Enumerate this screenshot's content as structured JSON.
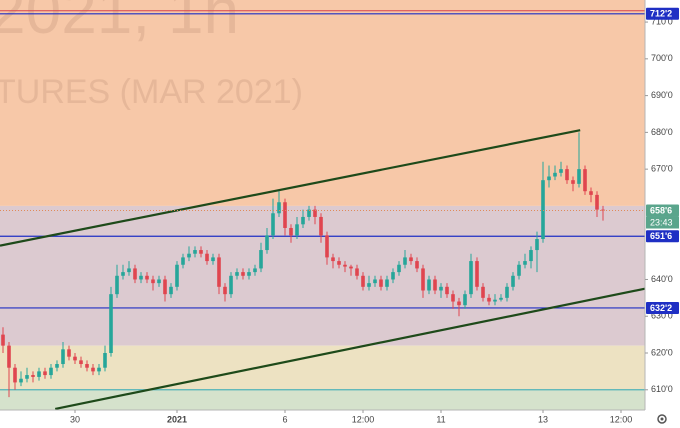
{
  "chart_data": {
    "type": "candlestick",
    "watermark": {
      "title": "2021, 1h",
      "subtitle": "TURES (MAR 2021)"
    },
    "xlim": [
      -0.5,
      107
    ],
    "ylim": [
      604.5,
      716
    ],
    "xticks": [
      {
        "value": 12,
        "label": "30"
      },
      {
        "value": 29,
        "label": "2021"
      },
      {
        "value": 47,
        "label": "6"
      },
      {
        "value": 60,
        "label": "12:00"
      },
      {
        "value": 73,
        "label": "11"
      },
      {
        "value": 90,
        "label": "13"
      },
      {
        "value": 103,
        "label": "12:00"
      }
    ],
    "yticks": [
      {
        "value": 610,
        "label": "610'0"
      },
      {
        "value": 620,
        "label": "620'0"
      },
      {
        "value": 630,
        "label": "630'0"
      },
      {
        "value": 640,
        "label": "640'0"
      },
      {
        "value": 670,
        "label": "670'0"
      },
      {
        "value": 680,
        "label": "680'0"
      },
      {
        "value": 690,
        "label": "690'0"
      },
      {
        "value": 700,
        "label": "700'0"
      },
      {
        "value": 710,
        "label": "710'0"
      }
    ],
    "up_color": "#26a69a",
    "down_color": "#e0454f",
    "zones": [
      {
        "from": 660,
        "to": 716,
        "color": "#f7c8a8"
      },
      {
        "from": 622,
        "to": 660,
        "color": "#dccad0"
      },
      {
        "from": 610,
        "to": 622,
        "color": "#ede2c2"
      },
      {
        "from": 604.5,
        "to": 610,
        "color": "#d5e2cc"
      }
    ],
    "levels": [
      {
        "value": 712.25,
        "label": "712'2",
        "color": "#1f2fc4"
      },
      {
        "value": 651.75,
        "label": "651'6",
        "color": "#1f2fc4"
      },
      {
        "value": 632.25,
        "label": "632'2",
        "color": "#1f2fc4"
      },
      {
        "value": 610,
        "color": "#4fb3b8"
      }
    ],
    "last_price": {
      "value": 658.75,
      "label": "658'6",
      "color": "#5aa58c"
    },
    "countdown": "23:43",
    "trendlines": [
      {
        "x": [
          -0.5,
          96.2
        ],
        "y": [
          649.2,
          680.6
        ],
        "color": "#1e4a1a"
      },
      {
        "x": [
          8.7,
          107
        ],
        "y": [
          604.8,
          637.5
        ],
        "color": "#1e4a1a"
      }
    ],
    "ohlc": {
      "open": [
        625,
        622,
        616,
        612,
        613,
        614,
        613.5,
        615,
        614,
        616,
        617,
        621,
        619,
        618,
        617,
        616,
        615,
        616,
        620,
        636,
        641,
        642,
        643,
        640,
        641,
        640,
        639,
        640,
        636,
        638,
        644,
        646,
        647,
        648,
        647,
        645,
        646,
        638,
        636,
        641,
        642,
        641,
        642,
        643,
        648,
        652,
        658,
        661,
        654,
        652,
        655,
        657,
        659,
        657,
        652,
        646,
        645,
        644,
        643.5,
        643,
        641,
        638,
        639,
        640,
        638,
        640,
        642,
        644,
        646,
        645,
        643,
        637,
        640,
        637,
        638,
        636,
        634,
        633,
        636,
        645,
        638,
        635,
        634,
        634.5,
        635,
        638,
        641,
        644,
        645,
        648,
        651,
        667,
        668,
        669,
        670,
        667,
        666,
        670,
        664,
        663,
        659
      ],
      "high": [
        627,
        623,
        617,
        615,
        616,
        615,
        616,
        616,
        617,
        618,
        623,
        622,
        620,
        619,
        618,
        617,
        617,
        622,
        638,
        644,
        644,
        645,
        644,
        642,
        642,
        641,
        641,
        641,
        639,
        645,
        647,
        649,
        649,
        649,
        648,
        647,
        647,
        639,
        642,
        643,
        643,
        643,
        644,
        650,
        654,
        662,
        664,
        662,
        655,
        657,
        659,
        660,
        660,
        658,
        653,
        647,
        646,
        645,
        644,
        644,
        642,
        641,
        641,
        641,
        641,
        643,
        645,
        648,
        647,
        646,
        644,
        641,
        641,
        639,
        639,
        637,
        635,
        637,
        647,
        646,
        639,
        636,
        636,
        636,
        639,
        642,
        645,
        647,
        649,
        653,
        672,
        671,
        671,
        672,
        671,
        668,
        680,
        671,
        665,
        664,
        660
      ],
      "low": [
        620,
        608,
        610,
        611,
        612,
        612,
        612.5,
        613,
        613,
        615,
        616,
        618,
        617,
        616,
        615,
        614,
        614,
        615,
        619,
        635,
        640,
        641,
        639,
        639,
        639,
        637,
        638,
        634,
        635,
        637,
        643,
        645,
        646,
        646,
        644,
        644,
        636,
        634,
        635,
        640,
        640,
        640,
        641,
        642,
        647,
        651,
        657,
        652,
        650,
        651,
        654,
        656,
        655,
        650,
        644,
        643,
        643,
        642,
        641,
        640,
        637,
        637,
        638,
        637,
        637,
        639,
        641,
        643,
        644,
        642,
        635,
        636,
        636,
        635,
        635,
        632,
        630,
        632,
        635,
        637,
        634,
        633,
        633,
        634,
        634,
        637,
        640,
        643,
        643,
        642,
        650,
        665,
        667,
        668,
        666,
        664,
        665,
        663,
        661,
        657,
        656
      ],
      "close": [
        622,
        616,
        612,
        613,
        614,
        613.5,
        615,
        614,
        616,
        617,
        621,
        619,
        618,
        617,
        616,
        615,
        616,
        620,
        636,
        641,
        642,
        643,
        640,
        641,
        640,
        639,
        640,
        636,
        638,
        644,
        646,
        647,
        648,
        647,
        645,
        646,
        638,
        636,
        641,
        642,
        641,
        642,
        643,
        648,
        652,
        658,
        661,
        654,
        652,
        655,
        657,
        659,
        657,
        652,
        646,
        645,
        644,
        643.5,
        643,
        641,
        638,
        639,
        640,
        638,
        640,
        642,
        644,
        646,
        645,
        643,
        637,
        640,
        637,
        638,
        636,
        634,
        633,
        636,
        645,
        638,
        635,
        634,
        634.5,
        635,
        638,
        641,
        644,
        645,
        648,
        651,
        667,
        668,
        669,
        670,
        667,
        666,
        670,
        664,
        663,
        659,
        658.75
      ]
    }
  }
}
